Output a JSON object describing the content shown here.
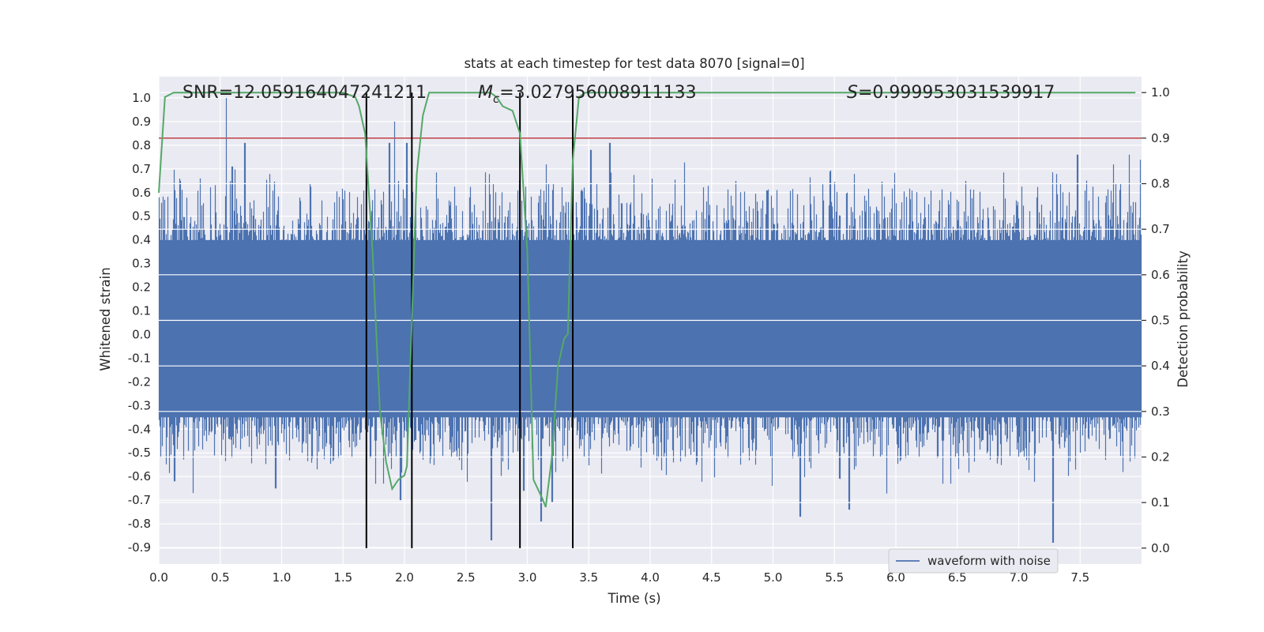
{
  "chart_data": {
    "type": "line",
    "title": "stats at each timestep for test data 8070 [signal=0]",
    "xlabel": "Time (s)",
    "ylabel": "Whitened strain",
    "y2label": "Detection probability",
    "xlim": [
      0.0,
      8.0
    ],
    "ylim": [
      -0.97,
      1.09
    ],
    "y2lim": [
      -0.035,
      1.035
    ],
    "xticks": [
      "0.0",
      "0.5",
      "1.0",
      "1.5",
      "2.0",
      "2.5",
      "3.0",
      "3.5",
      "4.0",
      "4.5",
      "5.0",
      "5.5",
      "6.0",
      "6.5",
      "7.0",
      "7.5"
    ],
    "yticks": [
      "1.0",
      "0.9",
      "0.8",
      "0.7",
      "0.6",
      "0.5",
      "0.4",
      "0.3",
      "0.2",
      "0.1",
      "0.0",
      "-0.1",
      "-0.2",
      "-0.3",
      "-0.4",
      "-0.5",
      "-0.6",
      "-0.7",
      "-0.8",
      "-0.9"
    ],
    "y2ticks": [
      "1.0",
      "0.9",
      "0.8",
      "0.7",
      "0.6",
      "0.5",
      "0.4",
      "0.3",
      "0.2",
      "0.1",
      "0.0"
    ],
    "annotations": {
      "snr": "SNR=12.059164047241211",
      "mc_symbol": "M",
      "mc_sub": "c",
      "mc_value": "=3.027956008911133",
      "s_symbol": "S",
      "s_value": "=0.999953031539917"
    },
    "legend": {
      "label": "waveform with noise",
      "placement": "lower-right"
    },
    "colors": {
      "waveform": "#4c72b0",
      "probability": "#55a868",
      "threshold": "#c44e52",
      "segments": "#000000",
      "background": "#eaeaf2",
      "grid": "#ffffff"
    },
    "series": [
      {
        "name": "waveform with noise",
        "axis": "left",
        "envelope_note_free": true,
        "t": [
          0.0,
          8.0
        ],
        "typical_range": [
          -0.35,
          0.4
        ],
        "peak_spikes": [
          [
            0.55,
            1.0
          ],
          [
            0.6,
            0.71
          ],
          [
            0.7,
            0.81
          ],
          [
            1.88,
            0.81
          ],
          [
            1.92,
            0.9
          ],
          [
            2.02,
            0.81
          ],
          [
            3.52,
            0.78
          ],
          [
            3.67,
            0.81
          ],
          [
            7.48,
            0.76
          ],
          [
            7.9,
            0.76
          ],
          [
            0.13,
            -0.62
          ],
          [
            0.28,
            -0.67
          ],
          [
            0.95,
            -0.65
          ],
          [
            1.97,
            -0.7
          ],
          [
            2.71,
            -0.87
          ],
          [
            2.97,
            -0.66
          ],
          [
            3.11,
            -0.79
          ],
          [
            3.2,
            -0.71
          ],
          [
            5.22,
            -0.77
          ],
          [
            5.62,
            -0.74
          ],
          [
            7.28,
            -0.88
          ]
        ]
      },
      {
        "name": "",
        "axis": "right",
        "x": [
          0.0,
          0.05,
          0.12,
          0.25,
          0.5,
          1.0,
          1.4,
          1.5,
          1.6,
          1.63,
          1.68,
          1.74,
          1.8,
          1.85,
          1.9,
          1.95,
          2.0,
          2.02,
          2.06,
          2.1,
          2.15,
          2.2,
          2.3,
          2.5,
          2.7,
          2.75,
          2.8,
          2.88,
          2.94,
          3.0,
          3.05,
          3.12,
          3.15,
          3.2,
          3.25,
          3.3,
          3.33,
          3.37,
          3.42,
          3.47,
          3.55,
          4.0,
          4.5,
          5.0,
          6.0,
          7.0,
          7.5,
          7.95
        ],
        "y": [
          0.78,
          0.99,
          1.0,
          1.0,
          1.0,
          1.0,
          1.0,
          1.0,
          0.99,
          0.97,
          0.91,
          0.65,
          0.3,
          0.19,
          0.13,
          0.15,
          0.16,
          0.18,
          0.5,
          0.82,
          0.95,
          1.0,
          1.0,
          1.0,
          1.0,
          0.99,
          0.97,
          0.96,
          0.91,
          0.65,
          0.15,
          0.11,
          0.09,
          0.2,
          0.4,
          0.46,
          0.47,
          0.85,
          0.99,
          1.0,
          1.0,
          1.0,
          1.0,
          1.0,
          1.0,
          1.0,
          1.0,
          1.0
        ]
      }
    ],
    "threshold": {
      "axis": "right",
      "value": 0.9
    },
    "segment_boundaries": [
      1.69,
      2.06,
      2.94,
      3.37
    ]
  }
}
